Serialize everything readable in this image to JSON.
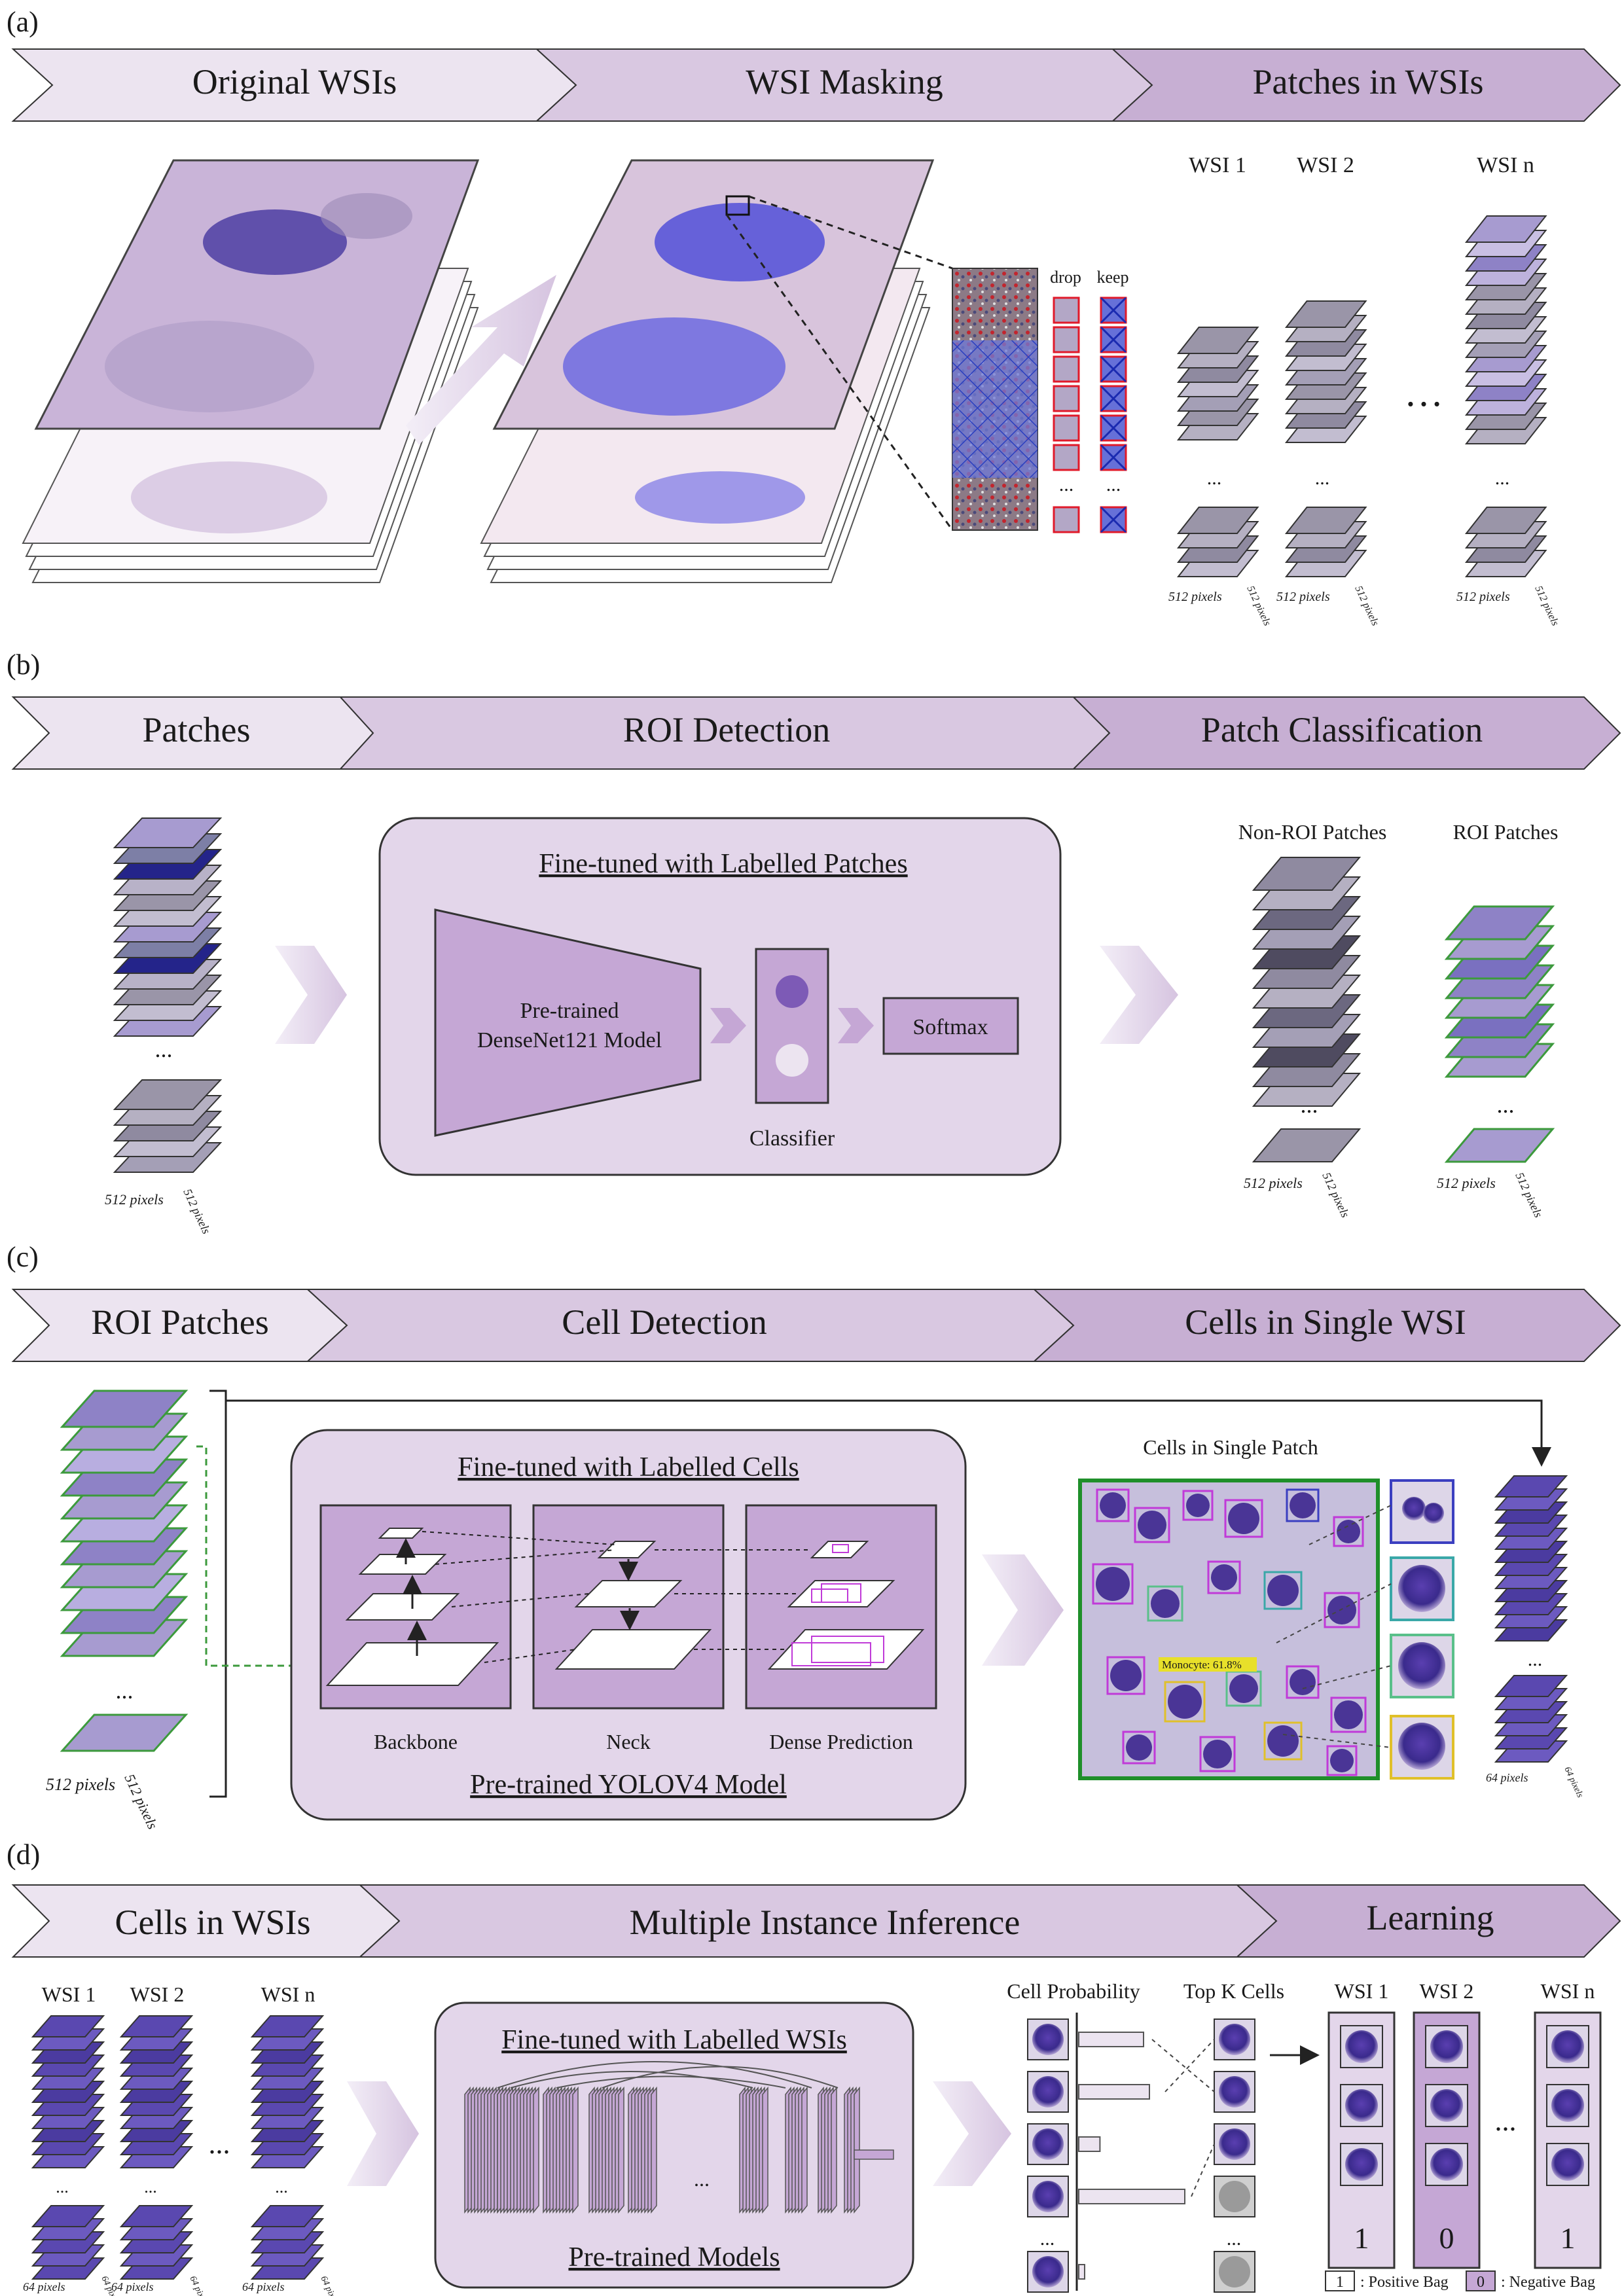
{
  "colors": {
    "chevron_light": "#ece4f0",
    "chevron_mid": "#d9c8e1",
    "chevron_dark": "#c7afd3",
    "box_fill": "#e3d6ea",
    "model_fill": "#c5a7d5",
    "tissue_purple": "#6e58b8",
    "tissue_light": "#c8b6d8",
    "patch_border_green": "#3c9a3c",
    "outline": "#333333"
  },
  "panel_a": {
    "label": "(a)",
    "stages": [
      "Original WSIs",
      "WSI Masking",
      "Patches in WSIs"
    ],
    "drop_label": "drop",
    "keep_label": "keep",
    "ellipsis": "...",
    "wsi_labels": [
      "WSI 1",
      "WSI 2",
      "WSI n"
    ],
    "pixel_label": "512 pixels",
    "dots": "…"
  },
  "panel_b": {
    "label": "(b)",
    "stages": [
      "Patches",
      "ROI Detection",
      "Patch Classification"
    ],
    "box_title": "Fine-tuned with Labelled Patches",
    "model_line1": "Pre-trained",
    "model_line2": "DenseNet121 Model",
    "softmax": "Softmax",
    "classifier": "Classifier",
    "non_roi": "Non-ROI Patches",
    "roi": "ROI Patches",
    "pixel_label": "512 pixels"
  },
  "panel_c": {
    "label": "(c)",
    "stages": [
      "ROI Patches",
      "Cell Detection",
      "Cells in Single WSI"
    ],
    "box_title": "Fine-tuned with Labelled Cells",
    "box_footer": "Pre-trained YOLOV4 Model",
    "parts": [
      "Backbone",
      "Neck",
      "Dense Prediction"
    ],
    "cells_single_patch": "Cells in Single Patch",
    "detection_tag": "Monocyte: 61.8%",
    "pixel_label": "512 pixels",
    "cell_pixel_label": "64 pixels"
  },
  "panel_d": {
    "label": "(d)",
    "stages": [
      "Cells in WSIs",
      "Multiple Instance Inference",
      "Learning"
    ],
    "wsi_labels": [
      "WSI 1",
      "WSI 2",
      "WSI n"
    ],
    "box_title": "Fine-tuned with Labelled WSIs",
    "box_footer": "Pre-trained Models",
    "cell_probability": "Cell Probability",
    "top_k": "Top K Cells",
    "bag_labels": [
      "1",
      "0",
      "1"
    ],
    "legend_positive_value": "1",
    "legend_positive_text": ": Positive Bag",
    "legend_negative_value": "0",
    "legend_negative_text": ": Negative Bag",
    "cell_pixel_label": "64 pixels",
    "ellipsis": "...",
    "net_dots": "..."
  }
}
